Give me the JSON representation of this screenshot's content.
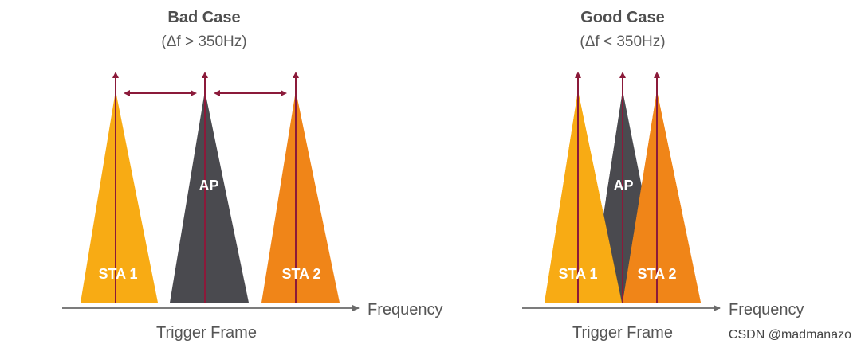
{
  "colors": {
    "sta1": "#f8ab14",
    "ap": "#4a4a4f",
    "sta2": "#f08518",
    "marker": "#8b1a3a",
    "axis": "#6a6a6a",
    "text": "#555555"
  },
  "left_panel": {
    "title": "Bad Case",
    "subtitle": "(Δf > 350Hz)",
    "sta1_label": "STA 1",
    "ap_label": "AP",
    "sta2_label": "STA 2",
    "axis_label": "Frequency",
    "bottom_label": "Trigger Frame"
  },
  "right_panel": {
    "title": "Good Case",
    "subtitle": "(Δf < 350Hz)",
    "sta1_label": "STA 1",
    "ap_label": "AP",
    "sta2_label": "STA 2",
    "axis_label": "Frequency",
    "bottom_label": "Trigger Frame"
  },
  "watermark": "CSDN @madmanazo"
}
